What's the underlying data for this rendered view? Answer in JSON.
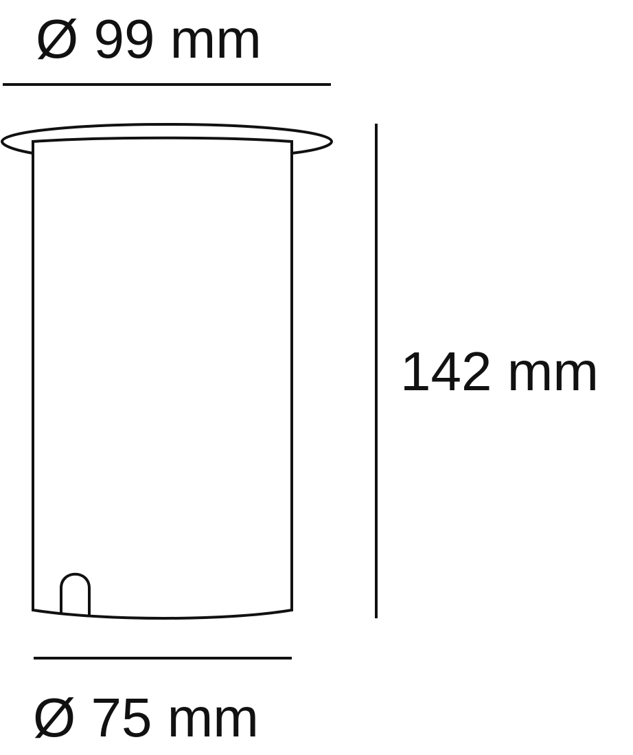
{
  "dimensions": {
    "top_diameter": "Ø 99 mm",
    "height": "142 mm",
    "bottom_diameter": "Ø 75 mm"
  },
  "colors": {
    "line": "#111111",
    "background": "#ffffff"
  }
}
